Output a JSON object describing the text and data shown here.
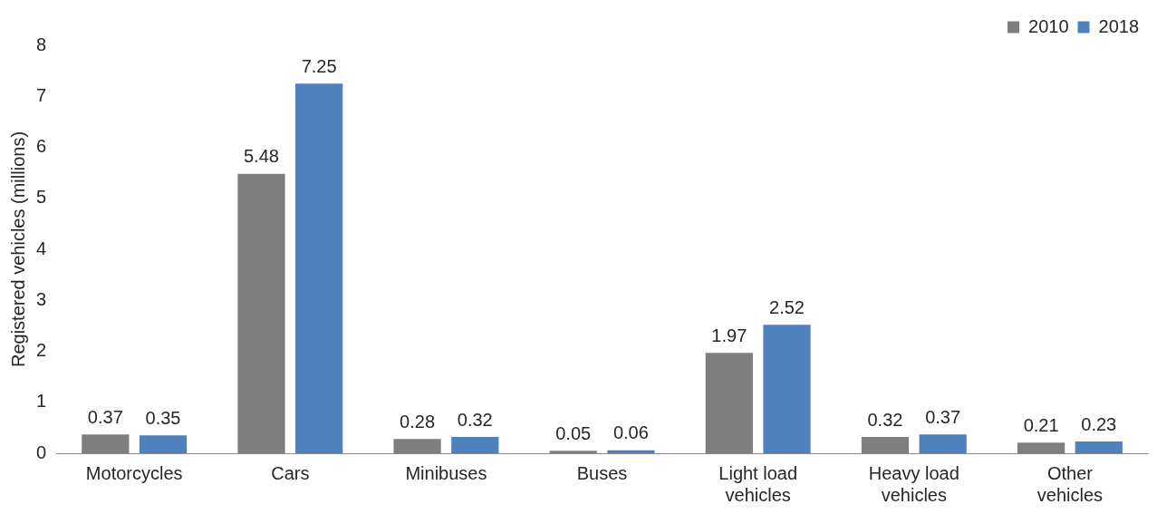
{
  "chart_data": {
    "type": "bar",
    "ylabel": "Registered vehicles (millions)",
    "categories": [
      "Motorcycles",
      "Cars",
      "Minibuses",
      "Buses",
      "Light load vehicles",
      "Heavy load vehicles",
      "Other vehicles"
    ],
    "series": [
      {
        "name": "2010",
        "color": "#7f7f7f",
        "values": [
          0.37,
          5.48,
          0.28,
          0.05,
          1.97,
          0.32,
          0.21
        ]
      },
      {
        "name": "2018",
        "color": "#4f81bd",
        "values": [
          0.35,
          7.25,
          0.32,
          0.06,
          2.52,
          0.37,
          0.23
        ]
      }
    ],
    "ylim": [
      0,
      8
    ],
    "yticks": [
      0,
      1,
      2,
      3,
      4,
      5,
      6,
      7,
      8
    ],
    "grid": false,
    "legend": "top right",
    "data_labels": true
  }
}
